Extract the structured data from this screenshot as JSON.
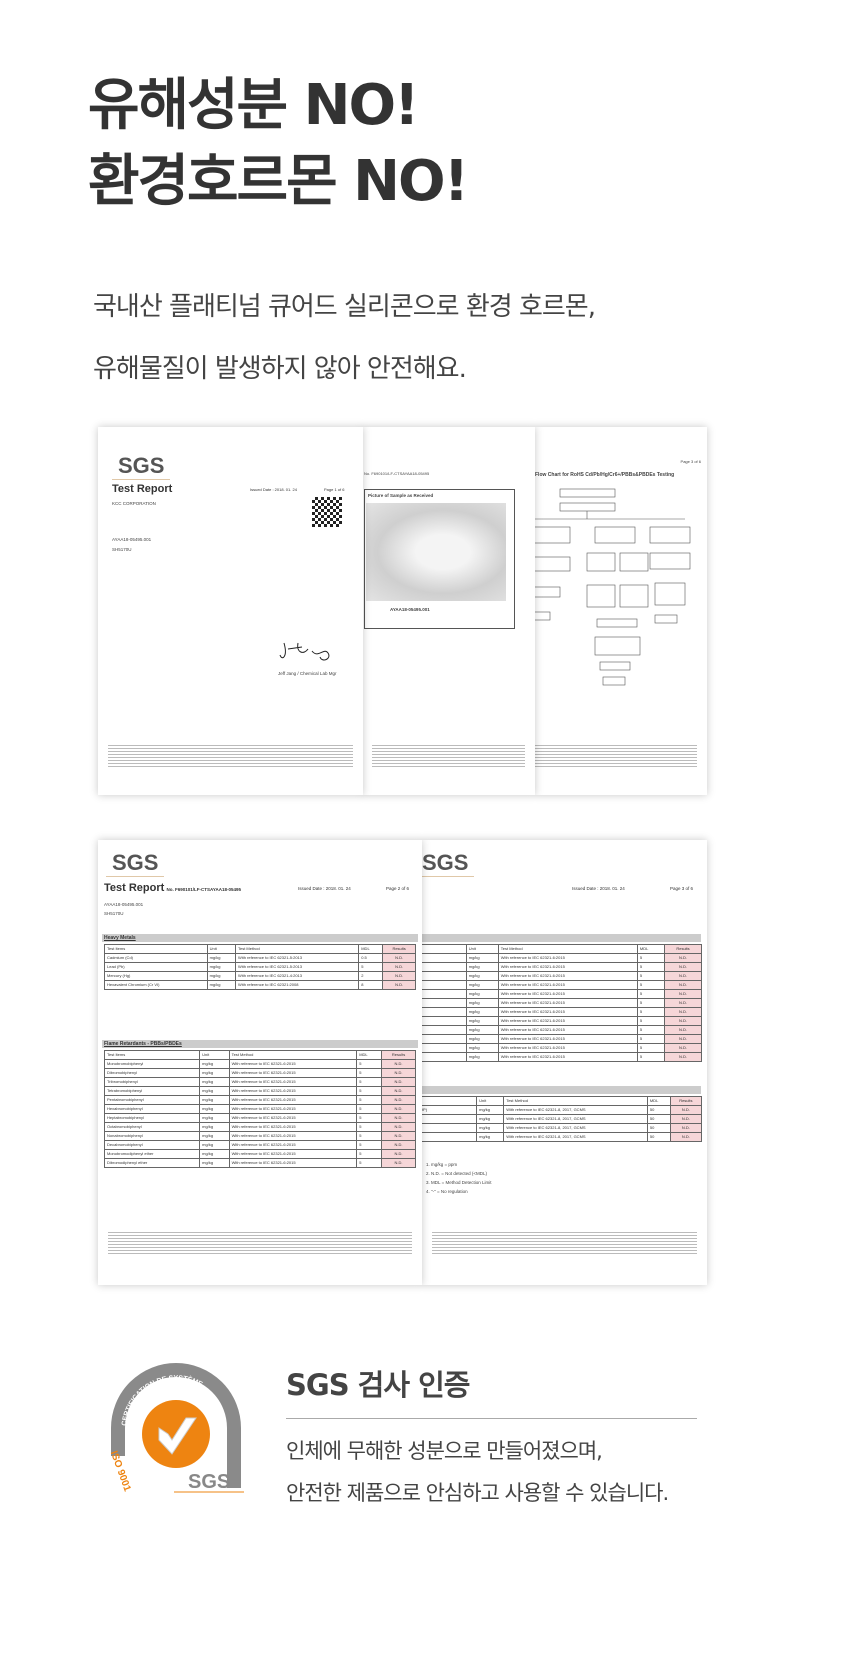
{
  "headline": {
    "line1": "유해성분 NO!",
    "line2": "환경호르몬 NO!"
  },
  "subtitle": {
    "line1": "국내산 플래티넘 큐어드 실리콘으로 환경 호르몬,",
    "line2": "유해물질이 발생하지 않아 안전해요."
  },
  "documents": {
    "logo": "SGS",
    "report_label": "Test Report",
    "report_no": "No. F690101/LF-CTSAYAA18-05495",
    "issued": "Issued Date : 2018. 01. 24",
    "page1": "Page 1 of 6",
    "page2": "Page 2 of 6",
    "page3": "Page 3 of 6",
    "company": "KCC CORPORATION",
    "sample_no": "AYAA18-05495.001",
    "product": "SH5170U",
    "signer": "Jeff Jang / Chemical Lab Mgr",
    "picture_caption": "Picture of Sample as Received",
    "sample_label": "AYAA18-05495.001",
    "flow_title": "Flow Chart for RoHS Cd/Pb/Hg/Cr6+/PBBs&PBDEs Testing",
    "heavy_metals_label": "Heavy Metals",
    "flame_label": "Flame Retardants - PBBs/PBDEs",
    "table_headers": [
      "Test Items",
      "Unit",
      "Test Method",
      "MDL",
      "Results"
    ],
    "heavy_rows": [
      [
        "Cadmium (Cd)",
        "mg/kg",
        "With reference to IEC 62321-5:2013",
        "0.5",
        "N.D."
      ],
      [
        "Lead (Pb)",
        "mg/kg",
        "With reference to IEC 62321-5:2013",
        "5",
        "N.D."
      ],
      [
        "Mercury (Hg)",
        "mg/kg",
        "With reference to IEC 62321-4:2013",
        "2",
        "N.D."
      ],
      [
        "Hexavalent Chromium (Cr VI)",
        "mg/kg",
        "With reference to IEC 62321:2008",
        "8",
        "N.D."
      ]
    ],
    "flame_rows": [
      [
        "Monobromobiphenyl",
        "mg/kg",
        "With reference to IEC 62321-6:2015",
        "5",
        "N.D."
      ],
      [
        "Dibromobiphenyl",
        "mg/kg",
        "With reference to IEC 62321-6:2015",
        "5",
        "N.D."
      ],
      [
        "Tribromobiphenyl",
        "mg/kg",
        "With reference to IEC 62321-6:2015",
        "5",
        "N.D."
      ],
      [
        "Tetrabromobiphenyl",
        "mg/kg",
        "With reference to IEC 62321-6:2015",
        "5",
        "N.D."
      ],
      [
        "Pentabromobiphenyl",
        "mg/kg",
        "With reference to IEC 62321-6:2015",
        "5",
        "N.D."
      ],
      [
        "Hexabromobiphenyl",
        "mg/kg",
        "With reference to IEC 62321-6:2015",
        "5",
        "N.D."
      ],
      [
        "Heptabromobiphenyl",
        "mg/kg",
        "With reference to IEC 62321-6:2015",
        "5",
        "N.D."
      ],
      [
        "Octabromobiphenyl",
        "mg/kg",
        "With reference to IEC 62321-6:2015",
        "5",
        "N.D."
      ],
      [
        "Nonabromobiphenyl",
        "mg/kg",
        "With reference to IEC 62321-6:2015",
        "5",
        "N.D."
      ],
      [
        "Decabromobiphenyl",
        "mg/kg",
        "With reference to IEC 62321-6:2015",
        "5",
        "N.D."
      ],
      [
        "Monobromodiphenyl ether",
        "mg/kg",
        "With reference to IEC 62321-6:2015",
        "5",
        "N.D."
      ],
      [
        "Dibromodiphenyl ether",
        "mg/kg",
        "With reference to IEC 62321-6:2015",
        "5",
        "N.D."
      ]
    ],
    "phthalate_rows": [
      [
        "Bis(2-ethylhexyl) phthalate (DEHP)",
        "mg/kg",
        "With reference to IEC 62321-8, 2017, GCMS",
        "50",
        "N.D."
      ],
      [
        "Butyl benzyl phthalate (BBP)",
        "mg/kg",
        "With reference to IEC 62321-8, 2017, GCMS",
        "50",
        "N.D."
      ],
      [
        "Dibutyl phthalate (DBP)",
        "mg/kg",
        "With reference to IEC 62321-8, 2017, GCMS",
        "50",
        "N.D."
      ],
      [
        "Diisobutyl phthalate (DIBP)",
        "mg/kg",
        "With reference to IEC 62321-8, 2017, GCMS",
        "50",
        "N.D."
      ]
    ],
    "notes": [
      "1. mg/kg = ppm",
      "2. N.D. = Not detected (<MDL)",
      "3. MDL = Method Detection Limit",
      "4. \"-\" = No regulation"
    ]
  },
  "certification": {
    "badge_ring": "CERTIFICATION DE SYSTÈME",
    "badge_iso": "ISO 9001",
    "badge_logo": "SGS",
    "title": "SGS 검사 인증",
    "line1": "인체에 무해한 성분으로 만들어졌으며,",
    "line2": "안전한 제품으로 안심하고 사용할 수 있습니다.",
    "accent": "#ee8411",
    "ring": "#8a8a8a"
  }
}
